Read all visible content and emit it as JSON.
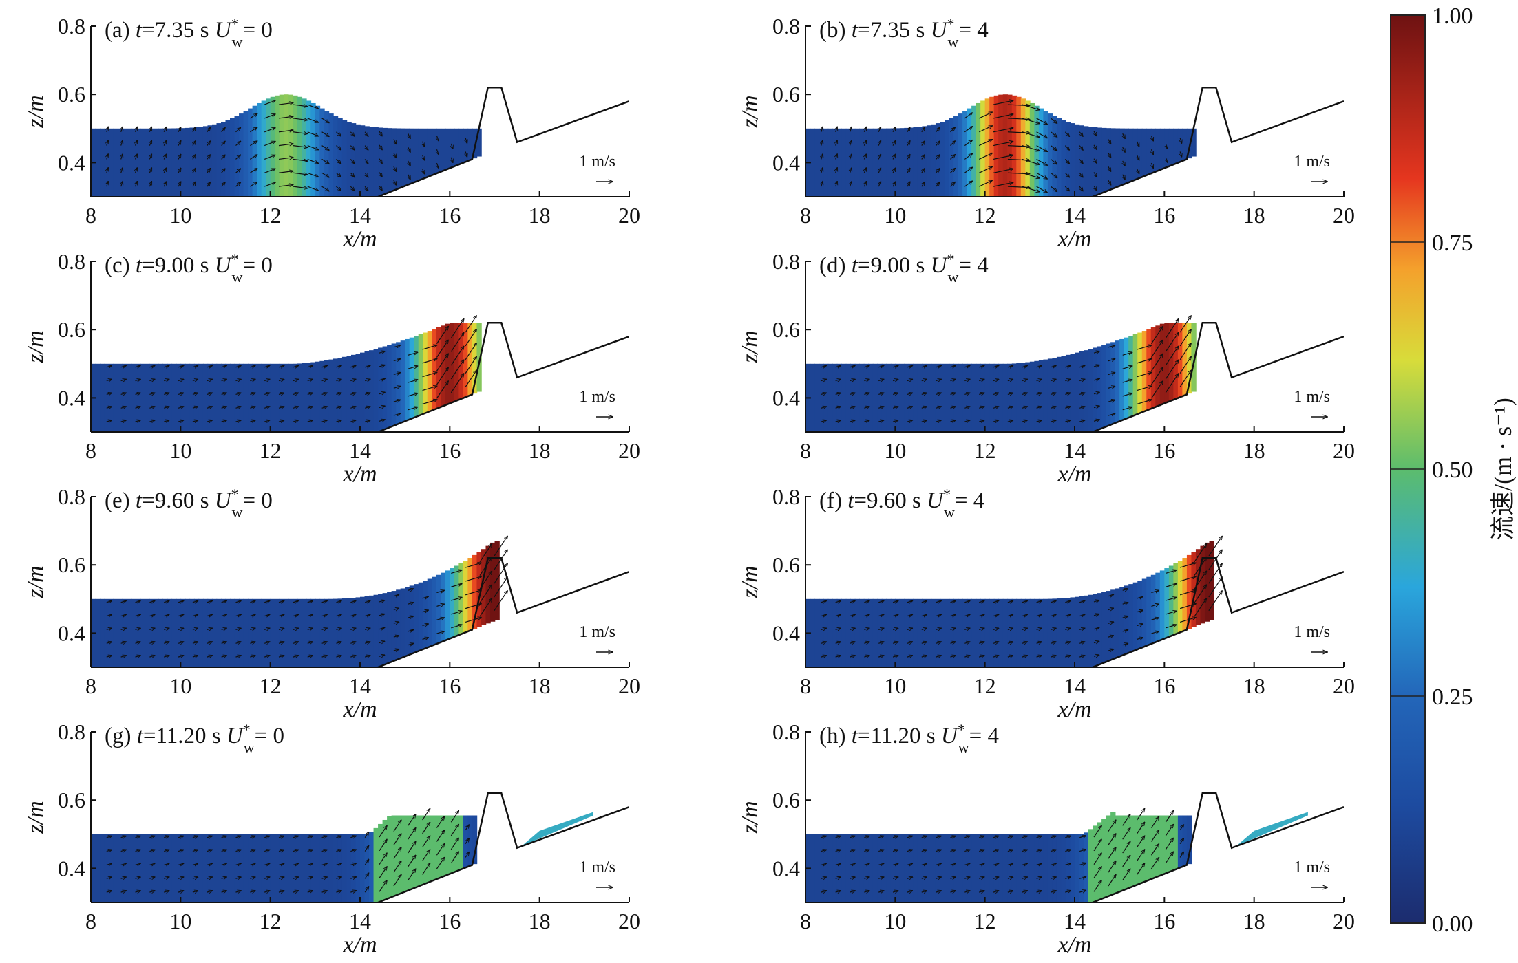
{
  "figure": {
    "colorbar": {
      "label": "流速/(m · s⁻¹)",
      "ticks": [
        "0.00",
        "0.25",
        "0.50",
        "0.75",
        "1.00"
      ],
      "range": [
        0,
        1
      ]
    }
  },
  "chart_data": [
    {
      "type": "heatmap",
      "title": "(a) t=7.35 s  U*w= 0",
      "title_parts": {
        "tag": "(a)",
        "time_label": "t",
        "time": "=7.35 s",
        "u_base": "U",
        "u_sup": "*",
        "u_sub": "w",
        "u_value": "= 0"
      },
      "xlabel": "x/m",
      "ylabel": "z/m",
      "xlim": [
        8,
        20
      ],
      "ylim": [
        0.3,
        0.8
      ],
      "xticks": [
        "8",
        "10",
        "12",
        "14",
        "16",
        "18",
        "20"
      ],
      "yticks": [
        "0.4",
        "0.6",
        "0.8"
      ],
      "velocity_scale_label": "1 m/s",
      "wave_crest_x": 12.35,
      "wave_crest_z": 0.6,
      "max_speed": 0.55,
      "structure": {
        "slope_from": [
          14.4,
          0.3
        ],
        "slope_to": [
          16.5,
          0.41
        ],
        "crest_left": 16.85,
        "crest_right": 17.15,
        "crest_z": 0.62,
        "toe_x": 17.5,
        "toe_z": 0.46,
        "landward_end": [
          20,
          0.58
        ]
      },
      "overtopping": false
    },
    {
      "type": "heatmap",
      "title": "(b) t=7.35 s  U*w= 4",
      "title_parts": {
        "tag": "(b)",
        "time_label": "t",
        "time": "=7.35 s",
        "u_base": "U",
        "u_sup": "*",
        "u_sub": "w",
        "u_value": "= 4"
      },
      "xlabel": "x/m",
      "ylabel": "z/m",
      "xlim": [
        8,
        20
      ],
      "ylim": [
        0.3,
        0.8
      ],
      "xticks": [
        "8",
        "10",
        "12",
        "14",
        "16",
        "18",
        "20"
      ],
      "yticks": [
        "0.4",
        "0.6",
        "0.8"
      ],
      "velocity_scale_label": "1 m/s",
      "wave_crest_x": 12.45,
      "wave_crest_z": 0.6,
      "max_speed": 0.9,
      "structure": {
        "slope_from": [
          14.4,
          0.3
        ],
        "slope_to": [
          16.5,
          0.41
        ],
        "crest_left": 16.85,
        "crest_right": 17.15,
        "crest_z": 0.62,
        "toe_x": 17.5,
        "toe_z": 0.46,
        "landward_end": [
          20,
          0.58
        ]
      },
      "overtopping": false
    },
    {
      "type": "heatmap",
      "title": "(c) t=9.00 s  U*w= 0",
      "title_parts": {
        "tag": "(c)",
        "time_label": "t",
        "time": "=9.00 s",
        "u_base": "U",
        "u_sup": "*",
        "u_sub": "w",
        "u_value": "= 0"
      },
      "xlabel": "x/m",
      "ylabel": "z/m",
      "xlim": [
        8,
        20
      ],
      "ylim": [
        0.3,
        0.8
      ],
      "xticks": [
        "8",
        "10",
        "12",
        "14",
        "16",
        "18",
        "20"
      ],
      "yticks": [
        "0.4",
        "0.6",
        "0.8"
      ],
      "velocity_scale_label": "1 m/s",
      "wave_crest_x": 16.0,
      "wave_crest_z": 0.62,
      "max_speed": 0.95,
      "structure": {
        "slope_from": [
          14.4,
          0.3
        ],
        "slope_to": [
          16.5,
          0.41
        ],
        "crest_left": 16.85,
        "crest_right": 17.15,
        "crest_z": 0.62,
        "toe_x": 17.5,
        "toe_z": 0.46,
        "landward_end": [
          20,
          0.58
        ]
      },
      "overtopping": false
    },
    {
      "type": "heatmap",
      "title": "(d) t=9.00 s  U*w= 4",
      "title_parts": {
        "tag": "(d)",
        "time_label": "t",
        "time": "=9.00 s",
        "u_base": "U",
        "u_sup": "*",
        "u_sub": "w",
        "u_value": "= 4"
      },
      "xlabel": "x/m",
      "ylabel": "z/m",
      "xlim": [
        8,
        20
      ],
      "ylim": [
        0.3,
        0.8
      ],
      "xticks": [
        "8",
        "10",
        "12",
        "14",
        "16",
        "18",
        "20"
      ],
      "yticks": [
        "0.4",
        "0.6",
        "0.8"
      ],
      "velocity_scale_label": "1 m/s",
      "wave_crest_x": 16.0,
      "wave_crest_z": 0.62,
      "max_speed": 0.95,
      "structure": {
        "slope_from": [
          14.4,
          0.3
        ],
        "slope_to": [
          16.5,
          0.41
        ],
        "crest_left": 16.85,
        "crest_right": 17.15,
        "crest_z": 0.62,
        "toe_x": 17.5,
        "toe_z": 0.46,
        "landward_end": [
          20,
          0.58
        ]
      },
      "overtopping": false
    },
    {
      "type": "heatmap",
      "title": "(e) t=9.60 s  U*w= 0",
      "title_parts": {
        "tag": "(e)",
        "time_label": "t",
        "time": "=9.60 s",
        "u_base": "U",
        "u_sup": "*",
        "u_sub": "w",
        "u_value": "= 0"
      },
      "xlabel": "x/m",
      "ylabel": "z/m",
      "xlim": [
        8,
        20
      ],
      "ylim": [
        0.3,
        0.8
      ],
      "xticks": [
        "8",
        "10",
        "12",
        "14",
        "16",
        "18",
        "20"
      ],
      "yticks": [
        "0.4",
        "0.6",
        "0.8"
      ],
      "velocity_scale_label": "1 m/s",
      "wave_crest_x": 17.0,
      "wave_crest_z": 0.67,
      "max_speed": 1.0,
      "structure": {
        "slope_from": [
          14.4,
          0.3
        ],
        "slope_to": [
          16.5,
          0.41
        ],
        "crest_left": 16.85,
        "crest_right": 17.15,
        "crest_z": 0.62,
        "toe_x": 17.5,
        "toe_z": 0.46,
        "landward_end": [
          20,
          0.58
        ]
      },
      "overtopping": false
    },
    {
      "type": "heatmap",
      "title": "(f) t=9.60 s  U*w= 4",
      "title_parts": {
        "tag": "(f)",
        "time_label": "t",
        "time": "=9.60 s",
        "u_base": "U",
        "u_sup": "*",
        "u_sub": "w",
        "u_value": "= 4"
      },
      "xlabel": "x/m",
      "ylabel": "z/m",
      "xlim": [
        8,
        20
      ],
      "ylim": [
        0.3,
        0.8
      ],
      "xticks": [
        "8",
        "10",
        "12",
        "14",
        "16",
        "18",
        "20"
      ],
      "yticks": [
        "0.4",
        "0.6",
        "0.8"
      ],
      "velocity_scale_label": "1 m/s",
      "wave_crest_x": 17.0,
      "wave_crest_z": 0.67,
      "max_speed": 1.0,
      "structure": {
        "slope_from": [
          14.4,
          0.3
        ],
        "slope_to": [
          16.5,
          0.41
        ],
        "crest_left": 16.85,
        "crest_right": 17.15,
        "crest_z": 0.62,
        "toe_x": 17.5,
        "toe_z": 0.46,
        "landward_end": [
          20,
          0.58
        ]
      },
      "overtopping": false
    },
    {
      "type": "heatmap",
      "title": "(g) t=11.20 s  U*w= 0",
      "title_parts": {
        "tag": "(g)",
        "time_label": "t",
        "time": "=11.20 s",
        "u_base": "U",
        "u_sup": "*",
        "u_sub": "w",
        "u_value": "= 0"
      },
      "xlabel": "x/m",
      "ylabel": "z/m",
      "xlim": [
        8,
        20
      ],
      "ylim": [
        0.3,
        0.8
      ],
      "xticks": [
        "8",
        "10",
        "12",
        "14",
        "16",
        "18",
        "20"
      ],
      "yticks": [
        "0.4",
        "0.6",
        "0.8"
      ],
      "velocity_scale_label": "1 m/s",
      "wave_crest_x": 14.7,
      "wave_crest_z": 0.56,
      "max_speed": 0.5,
      "structure": {
        "slope_from": [
          14.4,
          0.3
        ],
        "slope_to": [
          16.5,
          0.41
        ],
        "crest_left": 16.85,
        "crest_right": 17.15,
        "crest_z": 0.62,
        "toe_x": 17.5,
        "toe_z": 0.46,
        "landward_end": [
          20,
          0.58
        ]
      },
      "overtopping": true
    },
    {
      "type": "heatmap",
      "title": "(h) t=11.20 s  U*w= 4",
      "title_parts": {
        "tag": "(h)",
        "time_label": "t",
        "time": "=11.20 s",
        "u_base": "U",
        "u_sup": "*",
        "u_sub": "w",
        "u_value": "= 4"
      },
      "xlabel": "x/m",
      "ylabel": "z/m",
      "xlim": [
        8,
        20
      ],
      "ylim": [
        0.3,
        0.8
      ],
      "xticks": [
        "8",
        "10",
        "12",
        "14",
        "16",
        "18",
        "20"
      ],
      "yticks": [
        "0.4",
        "0.6",
        "0.8"
      ],
      "velocity_scale_label": "1 m/s",
      "wave_crest_x": 14.9,
      "wave_crest_z": 0.57,
      "max_speed": 0.5,
      "structure": {
        "slope_from": [
          14.4,
          0.3
        ],
        "slope_to": [
          16.5,
          0.41
        ],
        "crest_left": 16.85,
        "crest_right": 17.15,
        "crest_z": 0.62,
        "toe_x": 17.5,
        "toe_z": 0.46,
        "landward_end": [
          20,
          0.58
        ]
      },
      "overtopping": true
    }
  ]
}
